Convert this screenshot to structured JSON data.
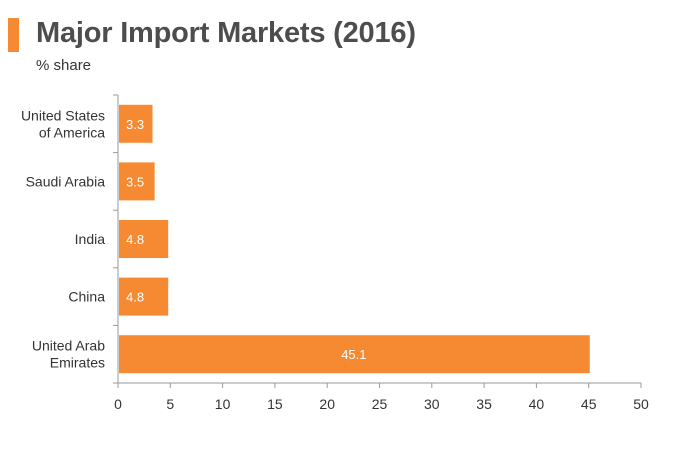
{
  "header": {
    "title": "Major Import Markets (2016)",
    "subtitle": "% share"
  },
  "colors": {
    "accent": "#f58a33",
    "bar": "#f58a33",
    "axis": "#9a9a9a",
    "text": "#333333"
  },
  "chart_data": {
    "type": "bar",
    "orientation": "horizontal",
    "title": "Major Import Markets (2016)",
    "subtitle": "% share",
    "categories": [
      [
        "United States",
        "of America"
      ],
      [
        "Saudi Arabia"
      ],
      [
        "India"
      ],
      [
        "China"
      ],
      [
        "United Arab",
        "Emirates"
      ]
    ],
    "values": [
      3.3,
      3.5,
      4.8,
      4.8,
      45.1
    ],
    "data_labels": [
      "3.3",
      "3.5",
      "4.8",
      "4.8",
      "45.1"
    ],
    "xlabel": "",
    "ylabel": "",
    "xlim": [
      0,
      50
    ],
    "xticks": [
      0,
      5,
      10,
      15,
      20,
      25,
      30,
      35,
      40,
      45,
      50
    ],
    "grid": false,
    "legend": "none"
  }
}
